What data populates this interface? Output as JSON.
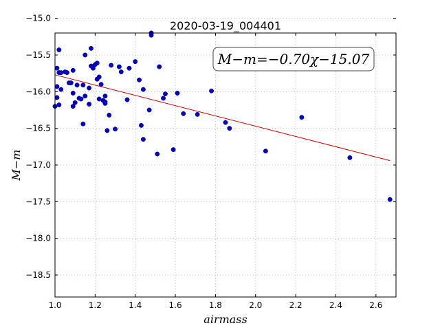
{
  "chart_data": {
    "type": "scatter",
    "title": "2020-03-19_004401",
    "xlabel": "airmass",
    "ylabel": "M−m",
    "xlim": [
      1.0,
      2.7
    ],
    "ylim": [
      -15.2,
      -18.8
    ],
    "y_inverted": true,
    "grid": true,
    "xticks": [
      1.0,
      1.2,
      1.4,
      1.6,
      1.8,
      2.0,
      2.2,
      2.4,
      2.6
    ],
    "xtick_labels": [
      "1.0",
      "1.2",
      "1.4",
      "1.6",
      "1.8",
      "2.0",
      "2.2",
      "2.4",
      "2.6"
    ],
    "yticks": [
      -15.0,
      -15.5,
      -16.0,
      -16.5,
      -17.0,
      -17.5,
      -18.0,
      -18.5
    ],
    "ytick_labels": [
      "−15.0",
      "−15.5",
      "−16.0",
      "−16.5",
      "−17.0",
      "−17.5",
      "−18.0",
      "−18.5"
    ],
    "annotation": "M−m=−0.70χ−15.07",
    "colors": {
      "points": "#0000cc",
      "fit": "#cc0000",
      "grid": "#b0b0b0"
    },
    "fit_line": {
      "x": [
        1.0,
        2.67
      ],
      "y": [
        -15.77,
        -16.94
      ]
    },
    "points": [
      {
        "x": 1.0,
        "y": -16.2
      },
      {
        "x": 1.01,
        "y": -16.08
      },
      {
        "x": 1.01,
        "y": -15.93
      },
      {
        "x": 1.01,
        "y": -15.68
      },
      {
        "x": 1.02,
        "y": -15.74
      },
      {
        "x": 1.02,
        "y": -16.18
      },
      {
        "x": 1.02,
        "y": -15.43
      },
      {
        "x": 1.03,
        "y": -15.97
      },
      {
        "x": 1.03,
        "y": -15.74
      },
      {
        "x": 1.05,
        "y": -15.73
      },
      {
        "x": 1.06,
        "y": -15.74
      },
      {
        "x": 1.07,
        "y": -15.88
      },
      {
        "x": 1.08,
        "y": -15.88
      },
      {
        "x": 1.09,
        "y": -16.2
      },
      {
        "x": 1.09,
        "y": -16.02
      },
      {
        "x": 1.09,
        "y": -15.71
      },
      {
        "x": 1.1,
        "y": -16.15
      },
      {
        "x": 1.11,
        "y": -15.91
      },
      {
        "x": 1.12,
        "y": -16.09
      },
      {
        "x": 1.13,
        "y": -16.1
      },
      {
        "x": 1.14,
        "y": -16.44
      },
      {
        "x": 1.14,
        "y": -15.91
      },
      {
        "x": 1.15,
        "y": -16.06
      },
      {
        "x": 1.15,
        "y": -15.5
      },
      {
        "x": 1.17,
        "y": -16.17
      },
      {
        "x": 1.17,
        "y": -15.95
      },
      {
        "x": 1.18,
        "y": -15.65
      },
      {
        "x": 1.18,
        "y": -15.41
      },
      {
        "x": 1.19,
        "y": -15.68
      },
      {
        "x": 1.2,
        "y": -15.63
      },
      {
        "x": 1.21,
        "y": -15.61
      },
      {
        "x": 1.21,
        "y": -15.83
      },
      {
        "x": 1.22,
        "y": -16.1
      },
      {
        "x": 1.22,
        "y": -15.8
      },
      {
        "x": 1.23,
        "y": -15.9
      },
      {
        "x": 1.24,
        "y": -16.12
      },
      {
        "x": 1.25,
        "y": -16.14
      },
      {
        "x": 1.25,
        "y": -16.06
      },
      {
        "x": 1.25,
        "y": -16.16
      },
      {
        "x": 1.26,
        "y": -16.53
      },
      {
        "x": 1.27,
        "y": -16.32
      },
      {
        "x": 1.28,
        "y": -15.64
      },
      {
        "x": 1.3,
        "y": -16.51
      },
      {
        "x": 1.32,
        "y": -15.66
      },
      {
        "x": 1.33,
        "y": -15.73
      },
      {
        "x": 1.36,
        "y": -16.11
      },
      {
        "x": 1.37,
        "y": -15.68
      },
      {
        "x": 1.4,
        "y": -15.59
      },
      {
        "x": 1.42,
        "y": -15.84
      },
      {
        "x": 1.43,
        "y": -16.46
      },
      {
        "x": 1.44,
        "y": -15.97
      },
      {
        "x": 1.44,
        "y": -16.65
      },
      {
        "x": 1.47,
        "y": -16.25
      },
      {
        "x": 1.48,
        "y": -15.2
      },
      {
        "x": 1.48,
        "y": -15.23
      },
      {
        "x": 1.51,
        "y": -16.85
      },
      {
        "x": 1.52,
        "y": -15.66
      },
      {
        "x": 1.54,
        "y": -16.09
      },
      {
        "x": 1.55,
        "y": -16.03
      },
      {
        "x": 1.59,
        "y": -16.79
      },
      {
        "x": 1.61,
        "y": -16.02
      },
      {
        "x": 1.64,
        "y": -16.3
      },
      {
        "x": 1.71,
        "y": -16.31
      },
      {
        "x": 1.78,
        "y": -15.99
      },
      {
        "x": 1.85,
        "y": -16.42
      },
      {
        "x": 1.87,
        "y": -16.5
      },
      {
        "x": 2.05,
        "y": -16.81
      },
      {
        "x": 2.23,
        "y": -16.35
      },
      {
        "x": 2.47,
        "y": -16.9
      },
      {
        "x": 2.67,
        "y": -17.47
      }
    ]
  }
}
